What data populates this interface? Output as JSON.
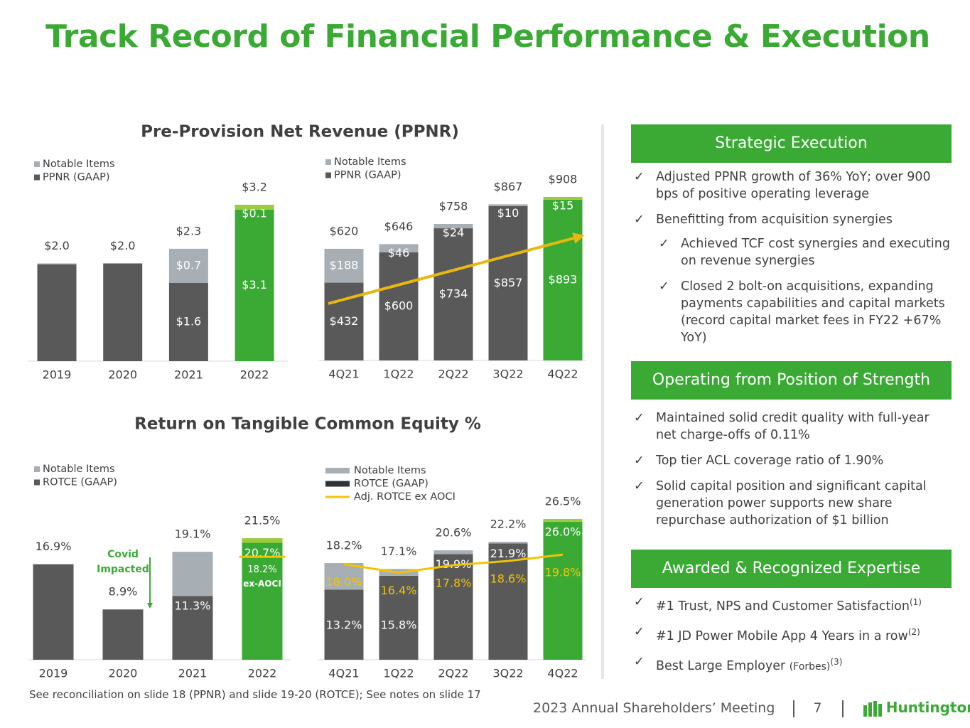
{
  "title": "Track Record of Financial Performance & Execution",
  "headings": [
    "Pre-Provision Net Revenue (PPNR)",
    "Return on Tangible Common Equity %"
  ],
  "chart_data": [
    {
      "type": "bar",
      "stacked": true,
      "label_position": "middle",
      "categories": [
        "2019",
        "2020",
        "2021",
        "2022"
      ],
      "series": [
        {
          "name": "Notable Items",
          "color": "#a7aeb4",
          "colors": [
            "#a7aeb4",
            "#a7aeb4",
            "#a7aeb4",
            "#9ccc3c"
          ],
          "label_color": "#ffffff",
          "values": [
            0.02,
            0,
            0.7,
            0.1
          ],
          "value_labels": [
            null,
            null,
            "$0.7",
            "$0.1"
          ]
        },
        {
          "name": "PPNR (GAAP)",
          "color": "#595959",
          "colors": [
            "#595959",
            "#595959",
            "#595959",
            "#3aaa35"
          ],
          "label_color": "#ffffff",
          "values": [
            1.98,
            2.0,
            1.6,
            3.1
          ],
          "value_labels": [
            null,
            null,
            "$1.6",
            "$3.1"
          ]
        }
      ],
      "totals": [
        2.0,
        2.0,
        2.3,
        3.2
      ],
      "total_labels": [
        "$2.0",
        "$2.0",
        "$2.3",
        "$3.2"
      ]
    },
    {
      "type": "bar",
      "stacked": true,
      "label_position": "middle",
      "categories": [
        "4Q21",
        "1Q22",
        "2Q22",
        "3Q22",
        "4Q22"
      ],
      "series": [
        {
          "name": "Notable Items",
          "color": "#a7aeb4",
          "colors": [
            "#a7aeb4",
            "#a7aeb4",
            "#a7aeb4",
            "#a7aeb4",
            "#9ccc3c"
          ],
          "label_color": "#ffffff",
          "values": [
            188,
            46,
            24,
            10,
            15
          ],
          "value_labels": [
            "$188",
            "$46",
            "$24",
            "$10",
            "$15"
          ]
        },
        {
          "name": "PPNR (GAAP)",
          "color": "#595959",
          "colors": [
            "#595959",
            "#595959",
            "#595959",
            "#595959",
            "#3aaa35"
          ],
          "label_color": "#ffffff",
          "values": [
            432,
            600,
            734,
            857,
            893
          ],
          "value_labels": [
            "$432",
            "$600",
            "$734",
            "$857",
            "$893"
          ]
        }
      ],
      "totals": [
        620,
        646,
        758,
        867,
        908
      ],
      "total_labels": [
        "$620",
        "$646",
        "$758",
        "$867",
        "$908"
      ],
      "trend_arrow": true,
      "trend_color": "#e9b80f"
    },
    {
      "type": "bar",
      "stacked": true,
      "label_position": "top",
      "categories": [
        "2019",
        "2020",
        "2021",
        "2022"
      ],
      "series": [
        {
          "name": "Notable Items",
          "color": "#a7aeb4",
          "colors": [
            "#a7aeb4",
            "#a7aeb4",
            "#a7aeb4",
            "#9ccc3c"
          ],
          "label_color": "#ffffff",
          "values": [
            0,
            0,
            7.8,
            0.8
          ]
        },
        {
          "name": "ROTCE (GAAP)",
          "color": "#595959",
          "colors": [
            "#595959",
            "#595959",
            "#595959",
            "#3aaa35"
          ],
          "label_color": "#ffffff",
          "values": [
            16.9,
            8.9,
            11.3,
            20.7
          ],
          "value_labels": [
            null,
            null,
            "11.3%",
            "20.7%"
          ]
        }
      ],
      "totals": [
        16.9,
        8.9,
        19.1,
        21.5
      ],
      "total_labels": [
        "16.9%",
        "8.9%",
        "19.1%",
        "21.5%"
      ],
      "annotation": [
        "Covid",
        "Impacted"
      ],
      "annotation_color": "#3aaa35",
      "ex_aoci": {
        "index": 3,
        "value": 18.2,
        "label": "18.2%",
        "note": "ex-AOCI",
        "color": "#f2c500"
      }
    },
    {
      "type": "bar",
      "stacked": true,
      "label_position": "top",
      "categories": [
        "4Q21",
        "1Q22",
        "2Q22",
        "3Q22",
        "4Q22"
      ],
      "series": [
        {
          "name": "Notable Items",
          "color": "#a7aeb4",
          "colors": [
            "#a7aeb4",
            "#a7aeb4",
            "#a7aeb4",
            "#a7aeb4",
            "#9ccc3c"
          ],
          "label_color": "#ffffff",
          "values": [
            5.0,
            1.3,
            0.7,
            0.3,
            0.5
          ]
        },
        {
          "name": "ROTCE (GAAP)",
          "color": "#2f3438",
          "colors": [
            "#595959",
            "#595959",
            "#595959",
            "#595959",
            "#3aaa35"
          ],
          "label_color": "#ffffff",
          "values": [
            13.2,
            15.8,
            19.9,
            21.9,
            26.0
          ],
          "value_labels": [
            "13.2%",
            "15.8%",
            "19.9%",
            "21.9%",
            "26.0%"
          ]
        },
        {
          "name": "Adj. ROTCE ex AOCI",
          "type": "line",
          "color": "#f2c500",
          "values": [
            18.0,
            16.4,
            17.8,
            18.6,
            19.8
          ],
          "value_labels": [
            "18.0%",
            "16.4%",
            "17.8%",
            "18.6%",
            "19.8%"
          ]
        }
      ],
      "totals": [
        18.2,
        17.1,
        20.6,
        22.2,
        26.5
      ],
      "total_labels": [
        "18.2%",
        "17.1%",
        "20.6%",
        "22.2%",
        "26.5%"
      ]
    }
  ],
  "panels": [
    {
      "heading": "Strategic Execution",
      "items": [
        {
          "text": "Adjusted PPNR growth of 36% YoY; over 900 bps of positive operating leverage"
        },
        {
          "text": "Benefitting from acquisition synergies",
          "sub": [
            "Achieved TCF cost synergies and executing on revenue synergies",
            "Closed 2 bolt-on acquisitions, expanding payments capabilities and capital markets (record capital market fees in FY22 +67% YoY)"
          ]
        }
      ]
    },
    {
      "heading": "Operating from Position of Strength",
      "items": [
        {
          "text": "Maintained solid credit quality with full-year net charge-offs of 0.11%"
        },
        {
          "text": "Top tier ACL coverage ratio of 1.90%"
        },
        {
          "text": "Solid capital position and significant capital generation power supports new share repurchase authorization of $1 billion"
        }
      ]
    },
    {
      "heading": "Awarded & Recognized Expertise",
      "items": [
        {
          "text": "#1 Trust, NPS and Customer Satisfaction",
          "note": "(1)"
        },
        {
          "text": "#1 JD Power Mobile App 4 Years in a row",
          "note": "(2)"
        },
        {
          "text": "Best Large Employer",
          "source": "(Forbes)",
          "note": "(3)"
        }
      ]
    }
  ],
  "footnote": "See reconciliation on slide 18 (PPNR) and slide 19-20 (ROTCE); See notes on slide 17",
  "footer": {
    "event": "2023 Annual Shareholders’ Meeting",
    "page": "7",
    "logo": "Huntington"
  }
}
